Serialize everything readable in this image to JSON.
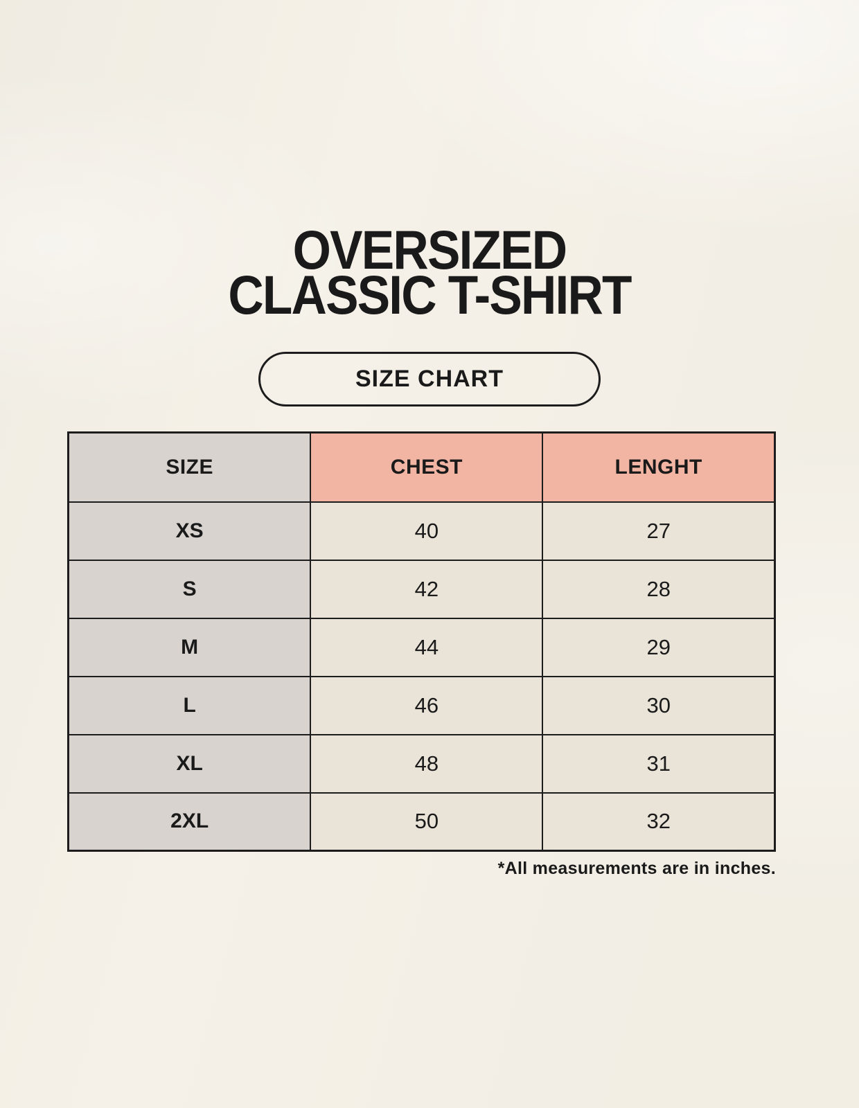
{
  "title": {
    "line1": "OVERSIZED",
    "line2": "CLASSIC T-SHIRT"
  },
  "size_chart_button": {
    "label": "SIZE CHART"
  },
  "footnote": "*All measurements are in inches.",
  "colors": {
    "background": "#f5f1e8",
    "size_column": "#d8d3ce",
    "header_accent": "#f2b5a3",
    "data_cell": "#e9e3d8",
    "border": "#1c1c1c",
    "text": "#1a1a1a"
  },
  "chart_data": {
    "type": "table",
    "title": "OVERSIZED CLASSIC T-SHIRT",
    "columns": [
      "SIZE",
      "CHEST",
      "LENGHT"
    ],
    "rows": [
      [
        "XS",
        40,
        27
      ],
      [
        "S",
        42,
        28
      ],
      [
        "M",
        44,
        29
      ],
      [
        "L",
        46,
        30
      ],
      [
        "XL",
        48,
        31
      ],
      [
        "2XL",
        50,
        32
      ]
    ],
    "units": "inches",
    "note": "*All measurements are in inches."
  }
}
